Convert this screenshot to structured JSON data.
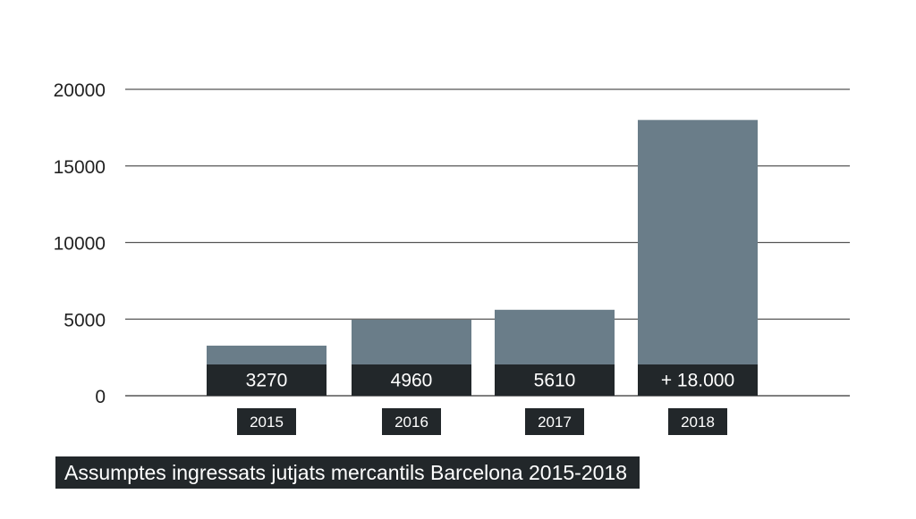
{
  "chart_data": {
    "type": "bar",
    "title": "Assumptes ingressats jutjats mercantils Barcelona 2015-2018",
    "categories": [
      "2015",
      "2016",
      "2017",
      "2018"
    ],
    "values": [
      3270,
      4960,
      5610,
      18000
    ],
    "data_labels": [
      "3270",
      "4960",
      "5610",
      "+ 18.000"
    ],
    "ylim": [
      0,
      20000
    ],
    "yticks": [
      0,
      5000,
      10000,
      15000,
      20000
    ],
    "ytick_labels": [
      "0",
      "5000",
      "10000",
      "15000",
      "20000"
    ],
    "grid": true,
    "colors": {
      "bar": "#6a7d89",
      "label_bg": "#22272a",
      "label_text": "#ffffff",
      "grid": "#555555",
      "axis_text": "#222222"
    }
  }
}
